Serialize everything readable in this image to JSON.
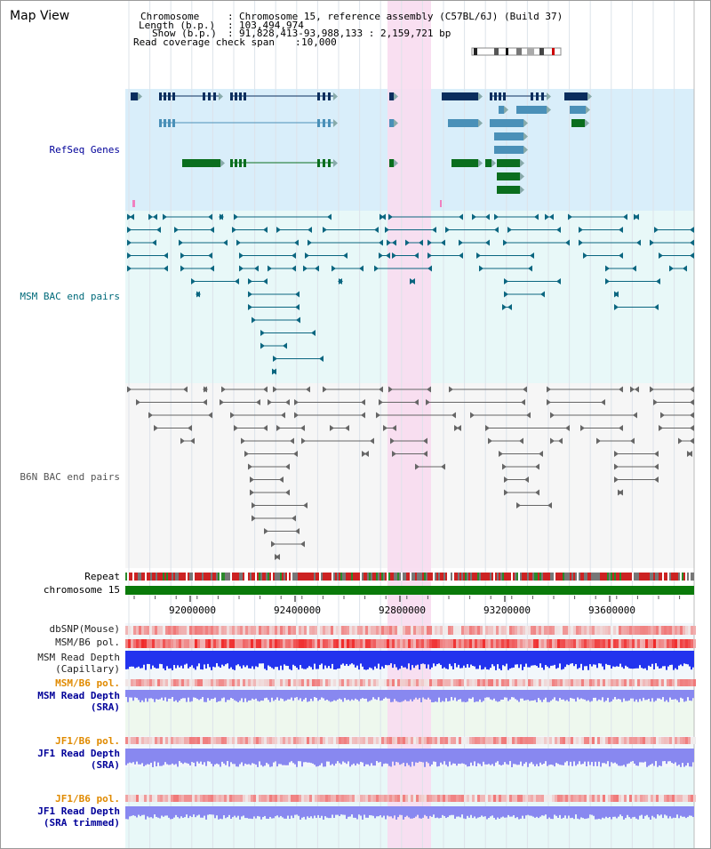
{
  "view_title": "Map View",
  "header": {
    "chromosome_label": "Chromosome",
    "chromosome_value": "Chromosome 15, reference assembly (C57BL/6J) (Build 37)",
    "length_label": "Length (b.p.)",
    "length_value": "103,494,974",
    "show_label": "Show (b.p.)",
    "show_value": "91,828,413-93,988,133 : 2,159,721 bp",
    "coverage_label": "Read coverage check span",
    "coverage_value": "10,000"
  },
  "tracks": {
    "refseq": "RefSeq Genes",
    "msm_bac": "MSM BAC end pairs",
    "b6n_bac": "B6N BAC end pairs",
    "repeat": "Repeat",
    "chromosome": "chromosome 15",
    "dbsnp": "dbSNP(Mouse)",
    "msm_pol1": "MSM/B6 pol.",
    "msm_cap_1": "MSM Read Depth",
    "msm_cap_2": "(Capillary)",
    "msm_pol2": "MSM/B6 pol.",
    "msm_sra_1": "MSM Read Depth",
    "msm_sra_2": "(SRA)",
    "jf1_pol1": "JF1/B6 pol.",
    "jf1_sra_1": "JF1 Read Depth",
    "jf1_sra_2": "(SRA)",
    "jf1_pol2": "JF1/B6 pol.",
    "jf1_trim_1": "JF1 Read Depth",
    "jf1_trim_2": "(SRA trimmed)"
  },
  "axis_ticks": [
    "92000000",
    "92400000",
    "92800000",
    "93200000",
    "93600000"
  ],
  "colors": {
    "refseq_bg": "#d9eefa",
    "msm_bg": "#e8f8f8",
    "highlight": "#f8dcef",
    "gene_dark": "#0b2e5e",
    "gene_mid": "#4a90b8",
    "gene_green": "#0a6e1e",
    "msm_line": "#0b6680",
    "b6n_line": "#666666",
    "chromosome_bar": "#0a7a0a",
    "depth_blue": "#2233ee",
    "depth_light": "#8888f0",
    "label_orange": "#e08a00",
    "label_navy": "#000099",
    "label_teal": "#006a7a"
  }
}
